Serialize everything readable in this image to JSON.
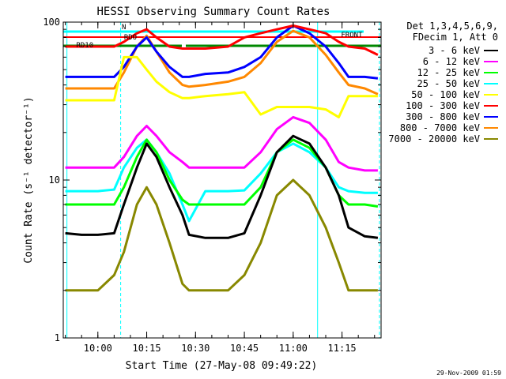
{
  "chart_data": {
    "type": "line",
    "title": "HESSI Observing Summary Count Rates",
    "xlabel": "Start Time (27-May-08 09:49:22)",
    "ylabel": "Count Rate (s⁻¹ detector⁻¹)",
    "yscale": "log",
    "ylim": [
      1,
      100
    ],
    "xlim": [
      "09:49:22",
      "11:27:00"
    ],
    "x_ticks": [
      "10:00",
      "10:15",
      "10:30",
      "10:45",
      "11:00",
      "11:15"
    ],
    "y_ticks": [
      "1",
      "10",
      "100"
    ],
    "legend_header": [
      "Det 1,3,4,5,6,9,",
      "FDecim 1, Att 0"
    ],
    "legend_position": "right",
    "footer": "29-Nov-2009 01:59",
    "flag_labels": [
      "N",
      "RDO",
      "RD10",
      "FRONT"
    ],
    "x": [
      "09:50",
      "09:55",
      "10:00",
      "10:05",
      "10:08",
      "10:12",
      "10:15",
      "10:18",
      "10:22",
      "10:26",
      "10:28",
      "10:33",
      "10:40",
      "10:45",
      "10:50",
      "10:55",
      "11:00",
      "11:05",
      "11:10",
      "11:14",
      "11:17",
      "11:22",
      "11:26"
    ],
    "series": [
      {
        "name": "3 - 6 keV",
        "color": "#000000",
        "values": [
          4.6,
          4.5,
          4.5,
          4.6,
          7,
          12,
          17,
          14,
          9,
          6,
          4.5,
          4.3,
          4.3,
          4.6,
          8,
          15,
          19,
          17,
          12,
          8,
          5,
          4.4,
          4.3
        ]
      },
      {
        "name": "6 - 12 keV",
        "color": "#ff00ff",
        "values": [
          12,
          12,
          12,
          12,
          14,
          19,
          22,
          19,
          15,
          13,
          12,
          12,
          12,
          12,
          15,
          21,
          25,
          23,
          18,
          13,
          12,
          11.5,
          11.5
        ]
      },
      {
        "name": "12 - 25 keV",
        "color": "#00ff00",
        "values": [
          7,
          7,
          7,
          7,
          9,
          14,
          18,
          15,
          10,
          7.5,
          7,
          7,
          7,
          7,
          9,
          15,
          18,
          16,
          12,
          8,
          7,
          7,
          6.8
        ]
      },
      {
        "name": "25 - 50 keV",
        "color": "#00ffff",
        "values": [
          8.5,
          8.5,
          8.5,
          8.7,
          12,
          16,
          18,
          15,
          11,
          7,
          5.5,
          8.5,
          8.5,
          8.6,
          11,
          15,
          17,
          15,
          12,
          9,
          8.5,
          8.3,
          8.3
        ]
      },
      {
        "name": "50 - 100 keV",
        "color": "#ffff00",
        "values": [
          32,
          32,
          32,
          32,
          60,
          60,
          50,
          42,
          36,
          33,
          33,
          34,
          35,
          36,
          26,
          29,
          29,
          29,
          28,
          25,
          34,
          34,
          34
        ]
      },
      {
        "name": "100 - 300 keV",
        "color": "#ff0000",
        "values": [
          70,
          70,
          70,
          70,
          75,
          85,
          90,
          80,
          70,
          68,
          68,
          68,
          70,
          80,
          85,
          90,
          95,
          90,
          85,
          75,
          70,
          68,
          62
        ]
      },
      {
        "name": "300 - 800 keV",
        "color": "#0000ff",
        "values": [
          45,
          45,
          45,
          45,
          52,
          70,
          80,
          65,
          52,
          45,
          45,
          47,
          48,
          52,
          60,
          80,
          95,
          85,
          70,
          55,
          45,
          45,
          44
        ]
      },
      {
        "name": "800 - 7000 keV",
        "color": "#ff8800",
        "values": [
          38,
          38,
          38,
          38,
          48,
          70,
          82,
          65,
          48,
          40,
          39,
          40,
          42,
          45,
          55,
          75,
          88,
          80,
          62,
          48,
          40,
          38,
          35
        ]
      },
      {
        "name": "7000 - 20000 keV",
        "color": "#888800",
        "values": [
          2,
          2,
          2,
          2.5,
          3.5,
          7,
          9,
          7,
          4,
          2.2,
          2,
          2,
          2,
          2.5,
          4,
          8,
          10,
          8,
          5,
          3,
          2,
          2,
          2
        ]
      }
    ]
  }
}
